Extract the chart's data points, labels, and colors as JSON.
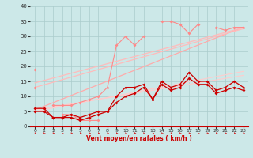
{
  "x": [
    0,
    1,
    2,
    3,
    4,
    5,
    6,
    7,
    8,
    9,
    10,
    11,
    12,
    13,
    14,
    15,
    16,
    17,
    18,
    19,
    20,
    21,
    22,
    23
  ],
  "series": {
    "light1": [
      19,
      18,
      16,
      14,
      12,
      11,
      10,
      10,
      12,
      16,
      18,
      19,
      21,
      22,
      23,
      24,
      25,
      26,
      27,
      28,
      29,
      30,
      31,
      33
    ],
    "light2": [
      15,
      15,
      14,
      13,
      12,
      11,
      11,
      11,
      13,
      15,
      17,
      18,
      20,
      21,
      22,
      23,
      24,
      25,
      26,
      27,
      28,
      29,
      30,
      32
    ],
    "light3": [
      13,
      13,
      12,
      11,
      10,
      10,
      10,
      10,
      11,
      13,
      15,
      16,
      18,
      19,
      20,
      21,
      22,
      23,
      24,
      25,
      26,
      27,
      28,
      30
    ],
    "light_rafales": [
      19,
      null,
      null,
      4,
      4,
      2,
      2,
      2,
      null,
      null,
      null,
      null,
      null,
      null,
      null,
      null,
      null,
      null,
      null,
      null,
      null,
      null,
      null,
      null
    ],
    "light_rafales2": [
      13,
      null,
      7,
      7,
      7,
      8,
      9,
      10,
      13,
      27,
      30,
      27,
      30,
      null,
      35,
      35,
      34,
      31,
      34,
      null,
      33,
      32,
      33,
      33
    ],
    "dark1": [
      6,
      6,
      3,
      3,
      4,
      3,
      4,
      5,
      5,
      10,
      13,
      13,
      14,
      9,
      15,
      13,
      14,
      18,
      15,
      15,
      12,
      13,
      15,
      13
    ],
    "dark2": [
      5,
      5,
      3,
      3,
      3,
      2,
      3,
      4,
      5,
      8,
      10,
      11,
      13,
      9,
      14,
      12,
      13,
      16,
      14,
      14,
      11,
      12,
      13,
      12
    ]
  },
  "trend_lines": [
    {
      "x0": 0,
      "y0": 5.5,
      "slope": 1.2,
      "color": "#ffaaaa",
      "lw": 0.9
    },
    {
      "x0": 0,
      "y0": 14.5,
      "slope": 0.8,
      "color": "#ffbbbb",
      "lw": 0.9
    },
    {
      "x0": 0,
      "y0": 13.0,
      "slope": 0.85,
      "color": "#ffbbbb",
      "lw": 0.9
    },
    {
      "x0": 0,
      "y0": 5.0,
      "slope": 0.58,
      "color": "#ffcccc",
      "lw": 0.8
    },
    {
      "x0": 0,
      "y0": 5.5,
      "slope": 0.5,
      "color": "#ffcccc",
      "lw": 0.8
    }
  ],
  "xlim": [
    0,
    23
  ],
  "ylim": [
    0,
    40
  ],
  "yticks": [
    0,
    5,
    10,
    15,
    20,
    25,
    30,
    35,
    40
  ],
  "xlabel": "Vent moyen/en rafales ( km/h )",
  "bg_color": "#cce8e8",
  "grid_color": "#aacccc",
  "dark_red": "#cc0000",
  "light_red": "#ff8888",
  "mid_red": "#ff6666"
}
